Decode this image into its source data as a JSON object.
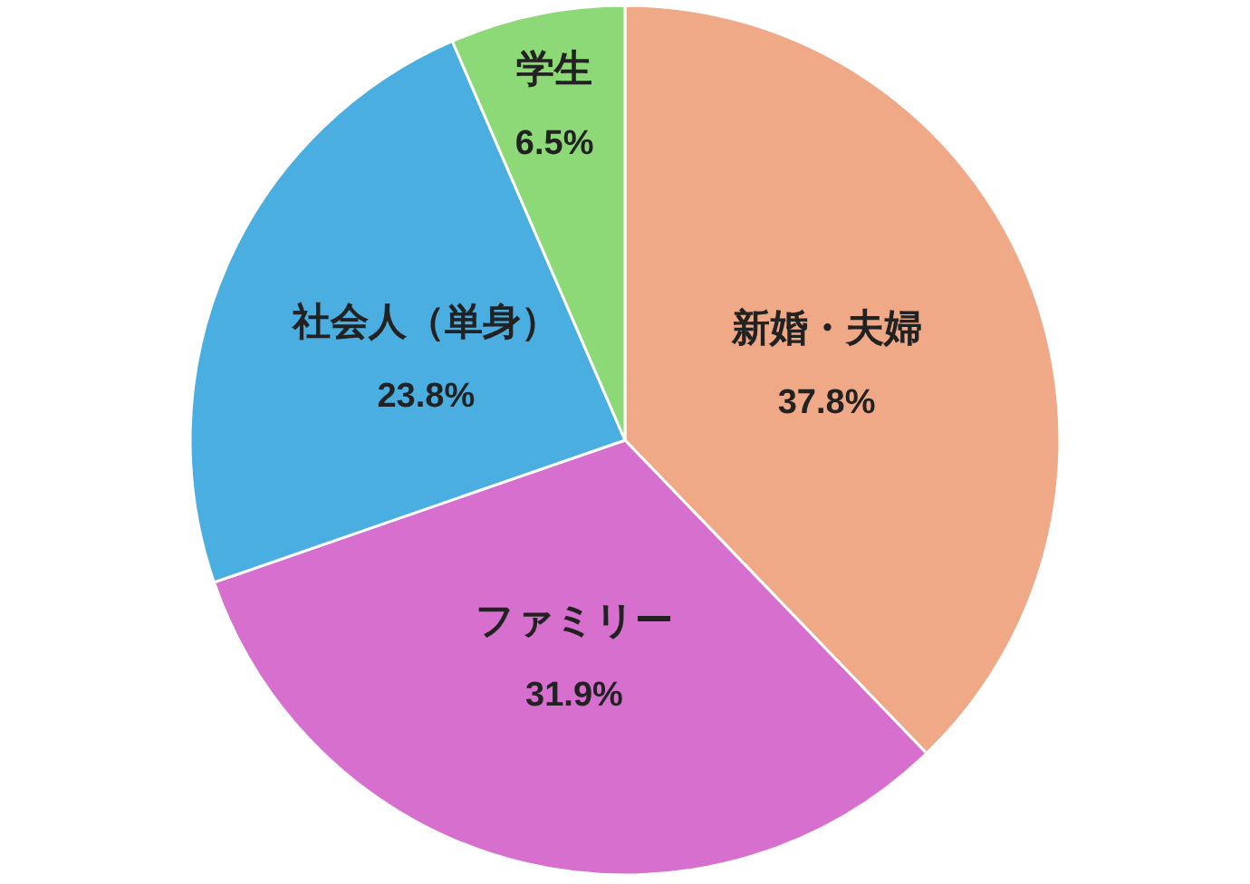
{
  "chart_data": {
    "type": "pie",
    "categories": [
      "新婚・夫婦",
      "ファミリー",
      "社会人（単身）",
      "学生"
    ],
    "values": [
      37.8,
      31.9,
      23.8,
      6.5
    ],
    "colors": [
      "#f0a986",
      "#d66fcd",
      "#4aafe0",
      "#8dd977"
    ],
    "value_labels": [
      "37.8%",
      "31.9%",
      "23.8%",
      "6.5%"
    ]
  }
}
